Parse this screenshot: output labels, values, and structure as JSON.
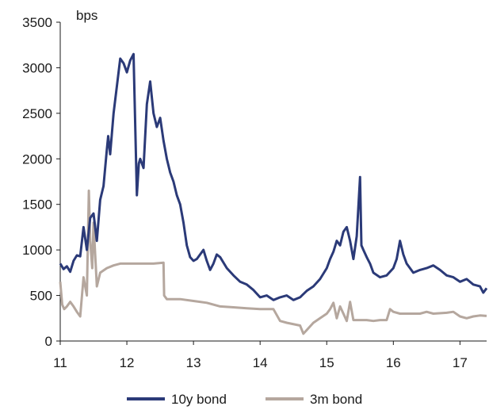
{
  "chart_data": {
    "type": "line",
    "unit_label": "bps",
    "xlim": [
      11,
      17.4
    ],
    "ylim": [
      0,
      3500
    ],
    "x_ticks": [
      11,
      12,
      13,
      14,
      15,
      16,
      17
    ],
    "y_ticks": [
      0,
      500,
      1000,
      1500,
      2000,
      2500,
      3000,
      3500
    ],
    "grid": false,
    "legend_position": "bottom",
    "series": [
      {
        "name": "10y bond",
        "color": "#2b3a78",
        "x": [
          11.0,
          11.05,
          11.1,
          11.15,
          11.2,
          11.25,
          11.3,
          11.35,
          11.4,
          11.45,
          11.5,
          11.55,
          11.6,
          11.65,
          11.7,
          11.72,
          11.75,
          11.8,
          11.85,
          11.9,
          11.95,
          12.0,
          12.05,
          12.1,
          12.15,
          12.18,
          12.2,
          12.25,
          12.3,
          12.35,
          12.4,
          12.45,
          12.5,
          12.55,
          12.6,
          12.65,
          12.7,
          12.75,
          12.8,
          12.85,
          12.9,
          12.95,
          13.0,
          13.05,
          13.1,
          13.15,
          13.2,
          13.25,
          13.3,
          13.35,
          13.4,
          13.5,
          13.6,
          13.7,
          13.8,
          13.9,
          14.0,
          14.1,
          14.2,
          14.3,
          14.4,
          14.5,
          14.6,
          14.7,
          14.8,
          14.9,
          15.0,
          15.05,
          15.1,
          15.15,
          15.2,
          15.25,
          15.3,
          15.35,
          15.4,
          15.45,
          15.5,
          15.52,
          15.55,
          15.6,
          15.65,
          15.7,
          15.8,
          15.9,
          16.0,
          16.05,
          16.1,
          16.15,
          16.2,
          16.3,
          16.4,
          16.5,
          16.6,
          16.7,
          16.8,
          16.9,
          17.0,
          17.1,
          17.2,
          17.3,
          17.35,
          17.4
        ],
        "y": [
          850,
          790,
          820,
          760,
          880,
          940,
          930,
          1250,
          1000,
          1350,
          1400,
          1100,
          1550,
          1700,
          2100,
          2250,
          2050,
          2500,
          2800,
          3100,
          3050,
          2950,
          3080,
          3150,
          1600,
          1950,
          2000,
          1900,
          2600,
          2850,
          2500,
          2350,
          2450,
          2200,
          2000,
          1850,
          1750,
          1600,
          1500,
          1300,
          1050,
          920,
          880,
          900,
          950,
          1000,
          880,
          780,
          850,
          950,
          920,
          800,
          720,
          650,
          620,
          560,
          480,
          500,
          450,
          480,
          500,
          450,
          480,
          550,
          600,
          680,
          800,
          900,
          980,
          1100,
          1050,
          1200,
          1250,
          1100,
          900,
          1150,
          1800,
          1050,
          1000,
          920,
          850,
          750,
          700,
          720,
          800,
          900,
          1100,
          950,
          850,
          750,
          780,
          800,
          830,
          780,
          720,
          700,
          650,
          680,
          620,
          600,
          530,
          580
        ]
      },
      {
        "name": "3m bond",
        "color": "#b5a79e",
        "x": [
          11.0,
          11.03,
          11.06,
          11.1,
          11.15,
          11.2,
          11.25,
          11.3,
          11.35,
          11.4,
          11.43,
          11.45,
          11.48,
          11.5,
          11.55,
          11.6,
          11.7,
          11.8,
          11.9,
          12.0,
          12.2,
          12.4,
          12.55,
          12.56,
          12.6,
          12.8,
          13.0,
          13.2,
          13.4,
          13.6,
          13.8,
          14.0,
          14.2,
          14.3,
          14.4,
          14.6,
          14.65,
          14.7,
          14.8,
          14.9,
          15.0,
          15.05,
          15.1,
          15.15,
          15.2,
          15.25,
          15.3,
          15.35,
          15.4,
          15.5,
          15.6,
          15.7,
          15.8,
          15.9,
          15.95,
          16.0,
          16.1,
          16.2,
          16.4,
          16.5,
          16.6,
          16.8,
          16.9,
          17.0,
          17.1,
          17.2,
          17.3,
          17.4
        ],
        "y": [
          650,
          400,
          350,
          380,
          430,
          380,
          320,
          270,
          700,
          500,
          1650,
          1100,
          800,
          1300,
          600,
          750,
          800,
          830,
          850,
          850,
          850,
          850,
          860,
          500,
          460,
          460,
          440,
          420,
          380,
          370,
          360,
          350,
          350,
          220,
          200,
          170,
          80,
          120,
          200,
          250,
          300,
          350,
          420,
          250,
          380,
          300,
          220,
          430,
          230,
          230,
          230,
          220,
          230,
          230,
          350,
          320,
          300,
          300,
          300,
          320,
          300,
          310,
          320,
          270,
          250,
          270,
          280,
          275
        ]
      }
    ]
  }
}
